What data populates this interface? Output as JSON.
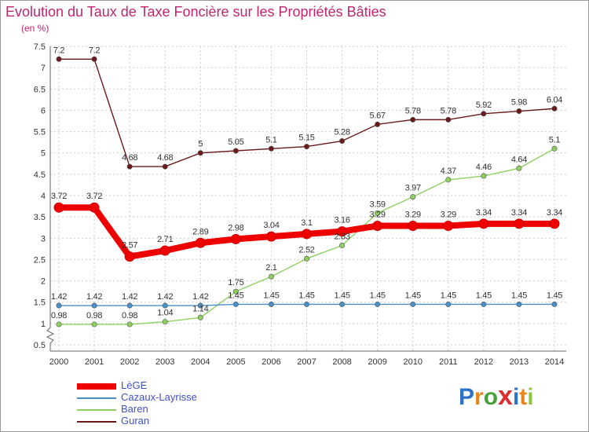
{
  "title": "Evolution du Taux de Taxe Foncière sur les Propriétés Bâties",
  "unit_label": "(en %)",
  "logo": {
    "letters": [
      "P",
      "r",
      "o",
      "x",
      "i",
      "t",
      "i"
    ],
    "colors": [
      "#2a73c8",
      "#e8851c",
      "#4aa03c",
      "#d93030",
      "#2a73c8",
      "#e8851c",
      "#8dc63f"
    ]
  },
  "chart_data": {
    "type": "line",
    "title": "Evolution du Taux de Taxe Foncière sur les Propriétés Bâties",
    "ylabel": "(en %)",
    "xlabel": "",
    "ylim": [
      0.5,
      7.5
    ],
    "yticks": [
      "0.5",
      "1",
      "1.5",
      "2",
      "2.5",
      "3",
      "3.5",
      "4",
      "4.5",
      "5",
      "5.5",
      "6",
      "6.5",
      "7",
      "7.5"
    ],
    "x": [
      "2000",
      "2001",
      "2002",
      "2003",
      "2004",
      "2005",
      "2006",
      "2007",
      "2008",
      "2009",
      "2010",
      "2011",
      "2012",
      "2013",
      "2014"
    ],
    "series": [
      {
        "name": "LèGE",
        "color": "#ee0000",
        "thick": true,
        "values": [
          3.72,
          3.72,
          2.57,
          2.71,
          2.89,
          2.98,
          3.04,
          3.1,
          3.16,
          3.29,
          3.29,
          3.29,
          3.34,
          3.34,
          3.34
        ],
        "labels": [
          "3.72",
          "3.72",
          "2.57",
          "2.71",
          "2.89",
          "2.98",
          "3.04",
          "3.1",
          "3.16",
          "3.29",
          "3.29",
          "3.29",
          "3.34",
          "3.34",
          "3.34"
        ]
      },
      {
        "name": "Cazaux-Layrisse",
        "color": "#4a90c8",
        "thick": false,
        "values": [
          1.42,
          1.42,
          1.42,
          1.42,
          1.42,
          1.45,
          1.45,
          1.45,
          1.45,
          1.45,
          1.45,
          1.45,
          1.45,
          1.45,
          1.45
        ],
        "labels": [
          "1.42",
          "1.42",
          "1.42",
          "1.42",
          "1.42",
          "1.45",
          "1.45",
          "1.45",
          "1.45",
          "1.45",
          "1.45",
          "1.45",
          "1.45",
          "1.45",
          "1.45"
        ]
      },
      {
        "name": "Baren",
        "color": "#8ed060",
        "thick": false,
        "values": [
          0.98,
          0.98,
          0.98,
          1.04,
          1.14,
          1.75,
          2.1,
          2.52,
          2.83,
          3.59,
          3.97,
          4.37,
          4.46,
          4.64,
          5.1
        ],
        "labels": [
          "0.98",
          "0.98",
          "0.98",
          "1.04",
          "1.14",
          "1.75",
          "2.1",
          "2.52",
          "2.83",
          "3.59",
          "3.97",
          "4.37",
          "4.46",
          "4.64",
          "5.1"
        ]
      },
      {
        "name": "Guran",
        "color": "#6b1a1a",
        "thick": false,
        "values": [
          7.2,
          7.2,
          4.68,
          4.68,
          5,
          5.05,
          5.1,
          5.15,
          5.28,
          5.67,
          5.78,
          5.78,
          5.92,
          5.98,
          6.04
        ],
        "labels": [
          "7.2",
          "7.2",
          "4.68",
          "4.68",
          "5",
          "5.05",
          "5.1",
          "5.15",
          "5.28",
          "5.67",
          "5.78",
          "5.78",
          "5.92",
          "5.98",
          "6.04"
        ]
      }
    ],
    "grid": true,
    "legend": "bottom-left"
  }
}
